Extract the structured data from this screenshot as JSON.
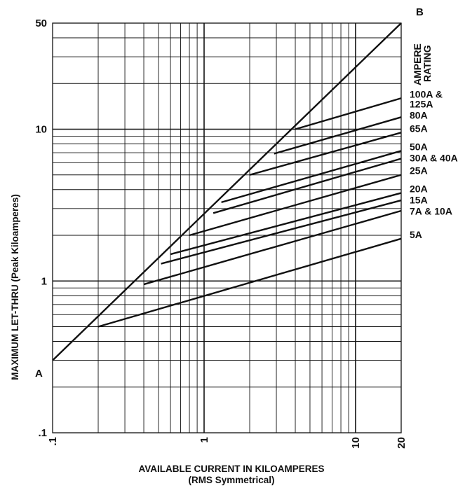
{
  "chart_data": {
    "type": "line",
    "xscale": "log",
    "yscale": "log",
    "xlim": [
      0.1,
      20
    ],
    "ylim": [
      0.1,
      50
    ],
    "grid": true,
    "xlabel_line1": "AVAILABLE CURRENT IN KILOAMPERES",
    "xlabel_line2": "(RMS Symmetrical)",
    "ylabel": "MAXIMUM LET-THRU (Peak Kiloamperes)",
    "x_ticks": [
      {
        "value": 0.1,
        "label": ".1"
      },
      {
        "value": 1,
        "label": "1"
      },
      {
        "value": 10,
        "label": "10"
      },
      {
        "value": 20,
        "label": "20"
      }
    ],
    "y_ticks": [
      {
        "value": 0.1,
        "label": ".1"
      },
      {
        "value": 1,
        "label": "1"
      },
      {
        "value": 10,
        "label": "10"
      },
      {
        "value": 50,
        "label": "50"
      }
    ],
    "limit_line": {
      "start_label": "A",
      "end_label": "B",
      "points": [
        [
          0.1,
          0.3
        ],
        [
          20,
          50
        ]
      ]
    },
    "legend_title_line1": "AMPERE",
    "legend_title_line2": "RATING",
    "series": [
      {
        "name_line1": "100A &",
        "name_line2": "125A",
        "points": [
          [
            4,
            10
          ],
          [
            20,
            16
          ]
        ]
      },
      {
        "name_line1": "80A",
        "name_line2": "",
        "points": [
          [
            2.9,
            6.9
          ],
          [
            20,
            12
          ]
        ]
      },
      {
        "name_line1": "65A",
        "name_line2": "",
        "points": [
          [
            2,
            5
          ],
          [
            20,
            9.5
          ]
        ]
      },
      {
        "name_line1": "50A",
        "name_line2": "",
        "points": [
          [
            1.3,
            3.3
          ],
          [
            20,
            7.2
          ]
        ]
      },
      {
        "name_line1": "30A & 40A",
        "name_line2": "",
        "points": [
          [
            1.15,
            2.8
          ],
          [
            20,
            6.4
          ]
        ]
      },
      {
        "name_line1": "25A",
        "name_line2": "",
        "points": [
          [
            0.8,
            2.0
          ],
          [
            20,
            5.0
          ]
        ]
      },
      {
        "name_line1": "20A",
        "name_line2": "",
        "points": [
          [
            0.6,
            1.5
          ],
          [
            20,
            3.8
          ]
        ]
      },
      {
        "name_line1": "15A",
        "name_line2": "",
        "points": [
          [
            0.52,
            1.3
          ],
          [
            20,
            3.4
          ]
        ]
      },
      {
        "name_line1": "7A & 10A",
        "name_line2": "",
        "points": [
          [
            0.4,
            0.95
          ],
          [
            20,
            2.9
          ]
        ]
      },
      {
        "name_line1": "5A",
        "name_line2": "",
        "points": [
          [
            0.2,
            0.5
          ],
          [
            20,
            1.9
          ]
        ]
      }
    ]
  }
}
